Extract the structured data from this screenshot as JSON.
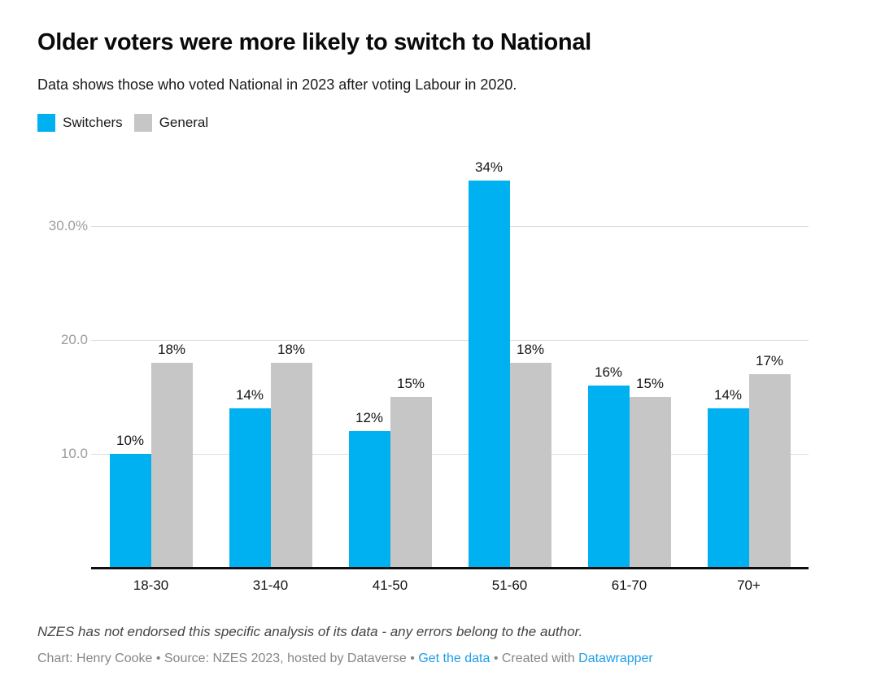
{
  "header": {
    "title": "Older voters were more likely to switch to National",
    "subtitle": "Data shows those who voted National in 2023 after voting Labour in 2020."
  },
  "legend": {
    "items": [
      {
        "label": "Switchers",
        "color": "#00b1f1"
      },
      {
        "label": "General",
        "color": "#c6c6c6"
      }
    ]
  },
  "chart_data": {
    "type": "bar",
    "title": "Older voters were more likely to switch to National",
    "subtitle": "Data shows those who voted National in 2023 after voting Labour in 2020.",
    "categories": [
      "18-30",
      "31-40",
      "41-50",
      "51-60",
      "61-70",
      "70+"
    ],
    "series": [
      {
        "name": "Switchers",
        "color": "#00b1f1",
        "values": [
          10,
          14,
          12,
          34,
          16,
          14
        ],
        "labels": [
          "10%",
          "14%",
          "12%",
          "34%",
          "16%",
          "14%"
        ]
      },
      {
        "name": "General",
        "color": "#c6c6c6",
        "values": [
          18,
          18,
          15,
          18,
          15,
          17
        ],
        "labels": [
          "18%",
          "18%",
          "15%",
          "18%",
          "15%",
          "17%"
        ]
      }
    ],
    "y_ticks": [
      {
        "value": 10,
        "label": "10.0"
      },
      {
        "value": 20,
        "label": "20.0"
      },
      {
        "value": 30,
        "label": "30.0%"
      }
    ],
    "ylim": [
      0,
      36.3
    ],
    "grid": "horizontal",
    "legend_position": "top-left",
    "value_labels": "above-bars"
  },
  "footer": {
    "disclaimer": "NZES has not endorsed this specific analysis of its data - any errors belong to the author.",
    "credit_prefix": "Chart: Henry Cooke • Source: NZES 2023, hosted by Dataverse • ",
    "get_data_link": "Get the data",
    "credit_middle": " • Created with ",
    "datawrapper_link": "Datawrapper",
    "link_color": "#1d9de8"
  }
}
